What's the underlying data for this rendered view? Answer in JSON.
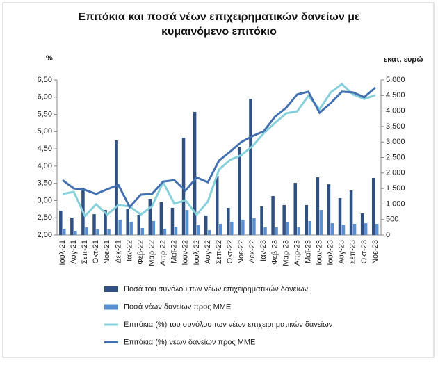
{
  "chart_data": {
    "type": "bar-line",
    "title": "Επιτόκια και ποσά νέων επιχειρηματικών δανείων με κυμαινόμενο επιτόκιο",
    "y_unit": "%",
    "y2_unit": "εκατ. ευρώ",
    "categories": [
      "Ιουλ-21",
      "Αυγ-21",
      "Σεπ-21",
      "Οκτ-21",
      "Νοε-21",
      "Δεκ-21",
      "Ιαν-22",
      "Φεβ-22",
      "Μαρ-22",
      "Απρ-22",
      "Μαϊ-22",
      "Ιουν-22",
      "Ιουλ-22",
      "Αυγ-22",
      "Σεπ-22",
      "Οκτ-22",
      "Νοε-22",
      "Δεκ-22",
      "Ιαν-23",
      "Φεβ-23",
      "Μαρ-23",
      "Απρ-23",
      "Μαϊ-23",
      "Ιουν-23",
      "Ιουλ-23",
      "Αυγ-23",
      "Σεπ-23",
      "Οκτ-23",
      "Νοε-23"
    ],
    "ylim": [
      2.0,
      6.5
    ],
    "yticks": [
      {
        "value": 2.0,
        "label": "2,00"
      },
      {
        "value": 2.5,
        "label": "2,50"
      },
      {
        "value": 3.0,
        "label": "3,00"
      },
      {
        "value": 3.5,
        "label": "3,50"
      },
      {
        "value": 4.0,
        "label": "4,00"
      },
      {
        "value": 4.5,
        "label": "4,50"
      },
      {
        "value": 5.0,
        "label": "5,00"
      },
      {
        "value": 5.5,
        "label": "5,50"
      },
      {
        "value": 6.0,
        "label": "6,00"
      },
      {
        "value": 6.5,
        "label": "6,50"
      }
    ],
    "y2lim": [
      0,
      5000
    ],
    "y2ticks": [
      0,
      500,
      {
        "value": 1000,
        "label": "1.000"
      },
      {
        "value": 1500,
        "label": "1.500"
      },
      {
        "value": 2000,
        "label": "2.000"
      },
      {
        "value": 2500,
        "label": "2.500"
      },
      {
        "value": 3000,
        "label": "3.000"
      },
      {
        "value": 3500,
        "label": "3.500"
      },
      {
        "value": 4000,
        "label": "4.000"
      },
      {
        "value": 4500,
        "label": "4.500"
      },
      {
        "value": 5000,
        "label": "5.000"
      }
    ],
    "series": [
      {
        "name": "Ποσά του συνόλου των νέων επιχειρηματικών δανείων",
        "kind": "bar",
        "axis": "y2",
        "color": "#2f5080",
        "values": [
          785,
          560,
          1525,
          670,
          805,
          3050,
          850,
          650,
          1165,
          1055,
          875,
          3140,
          3970,
          630,
          1905,
          875,
          2825,
          4395,
          920,
          1255,
          965,
          1680,
          965,
          1860,
          1635,
          1190,
          1435,
          695,
          1840
        ]
      },
      {
        "name": "Ποσά νέων δανείων προς ΜΜΕ",
        "kind": "bar",
        "axis": "y2",
        "color": "#5a8fd0",
        "values": [
          200,
          135,
          245,
          180,
          180,
          495,
          425,
          225,
          450,
          200,
          270,
          805,
          315,
          155,
          360,
          425,
          495,
          540,
          245,
          245,
          405,
          245,
          450,
          805,
          380,
          335,
          360,
          380,
          360
        ]
      },
      {
        "name": "Επιτόκια (%) του συνόλου των νέων επιχειρηματικών δανείων",
        "kind": "line",
        "axis": "y",
        "color": "#86d0dc",
        "values": [
          3.19,
          3.25,
          2.55,
          2.89,
          2.59,
          2.87,
          2.83,
          2.59,
          2.83,
          3.53,
          2.91,
          3.01,
          2.59,
          2.97,
          3.9,
          4.18,
          4.32,
          4.58,
          4.95,
          5.25,
          5.53,
          5.59,
          6.04,
          5.65,
          6.14,
          6.38,
          6.08,
          5.95,
          6.06
        ]
      },
      {
        "name": "Επιτόκια (%) νέων δανείων προς ΜΜΕ",
        "kind": "line",
        "axis": "y",
        "color": "#4270b0",
        "values": [
          3.59,
          3.35,
          3.31,
          3.19,
          3.33,
          3.45,
          2.81,
          3.17,
          3.19,
          3.55,
          3.59,
          3.29,
          3.67,
          3.53,
          4.16,
          4.42,
          4.7,
          4.87,
          5.01,
          5.43,
          5.69,
          6.08,
          6.16,
          5.55,
          5.83,
          6.16,
          6.14,
          6.0,
          6.28
        ]
      }
    ]
  }
}
